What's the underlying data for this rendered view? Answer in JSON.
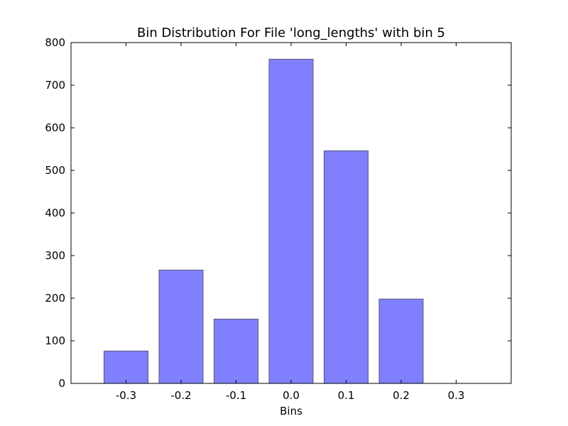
{
  "chart_data": {
    "type": "bar",
    "title": "Bin Distribution For File 'long_lengths' with bin 5",
    "xlabel": "Bins",
    "ylabel": "",
    "categories": [
      "-0.3",
      "-0.2",
      "-0.1",
      "0.0",
      "0.1",
      "0.2",
      "0.3"
    ],
    "x": [
      -0.3,
      -0.2,
      -0.1,
      0.0,
      0.1,
      0.2,
      0.3
    ],
    "values": [
      76,
      266,
      151,
      761,
      546,
      198,
      0
    ],
    "bar_width": 0.08,
    "xlim": [
      -0.4,
      0.4
    ],
    "ylim": [
      0,
      800
    ],
    "yticks": [
      0,
      100,
      200,
      300,
      400,
      500,
      600,
      700,
      800
    ],
    "ytick_labels": [
      "0",
      "100",
      "200",
      "300",
      "400",
      "500",
      "600",
      "700",
      "800"
    ],
    "grid": false,
    "legend": "none",
    "colors": {
      "bar_fill": "#8080ff",
      "bar_edge": "#55557a",
      "axis": "#000000",
      "background": "#ffffff"
    }
  }
}
